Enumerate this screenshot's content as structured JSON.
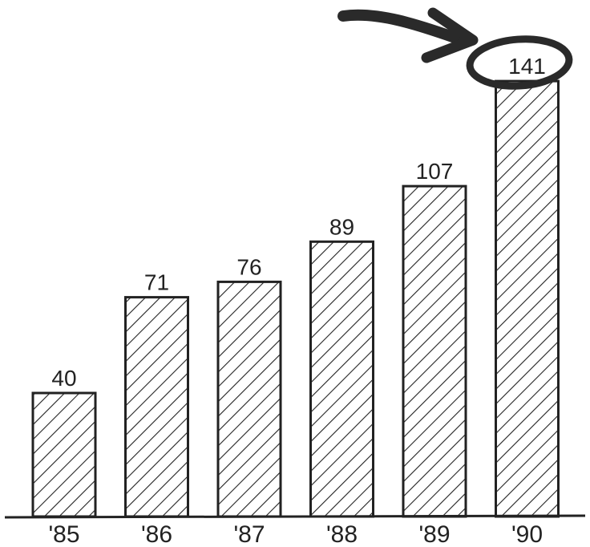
{
  "chart_data": {
    "type": "bar",
    "categories": [
      "'85",
      "'86",
      "'87",
      "'88",
      "'89",
      "'90"
    ],
    "values": [
      40,
      71,
      76,
      89,
      107,
      141
    ],
    "title": "",
    "xlabel": "",
    "ylabel": "",
    "ylim": [
      0,
      150
    ],
    "grid": false,
    "legend": "none",
    "bar_pattern": "diagonal-hatch",
    "highlight": {
      "category": "'90",
      "style": "hand-drawn circle with arrow"
    },
    "colors": {
      "ink": "#222222",
      "background": "#ffffff"
    }
  }
}
